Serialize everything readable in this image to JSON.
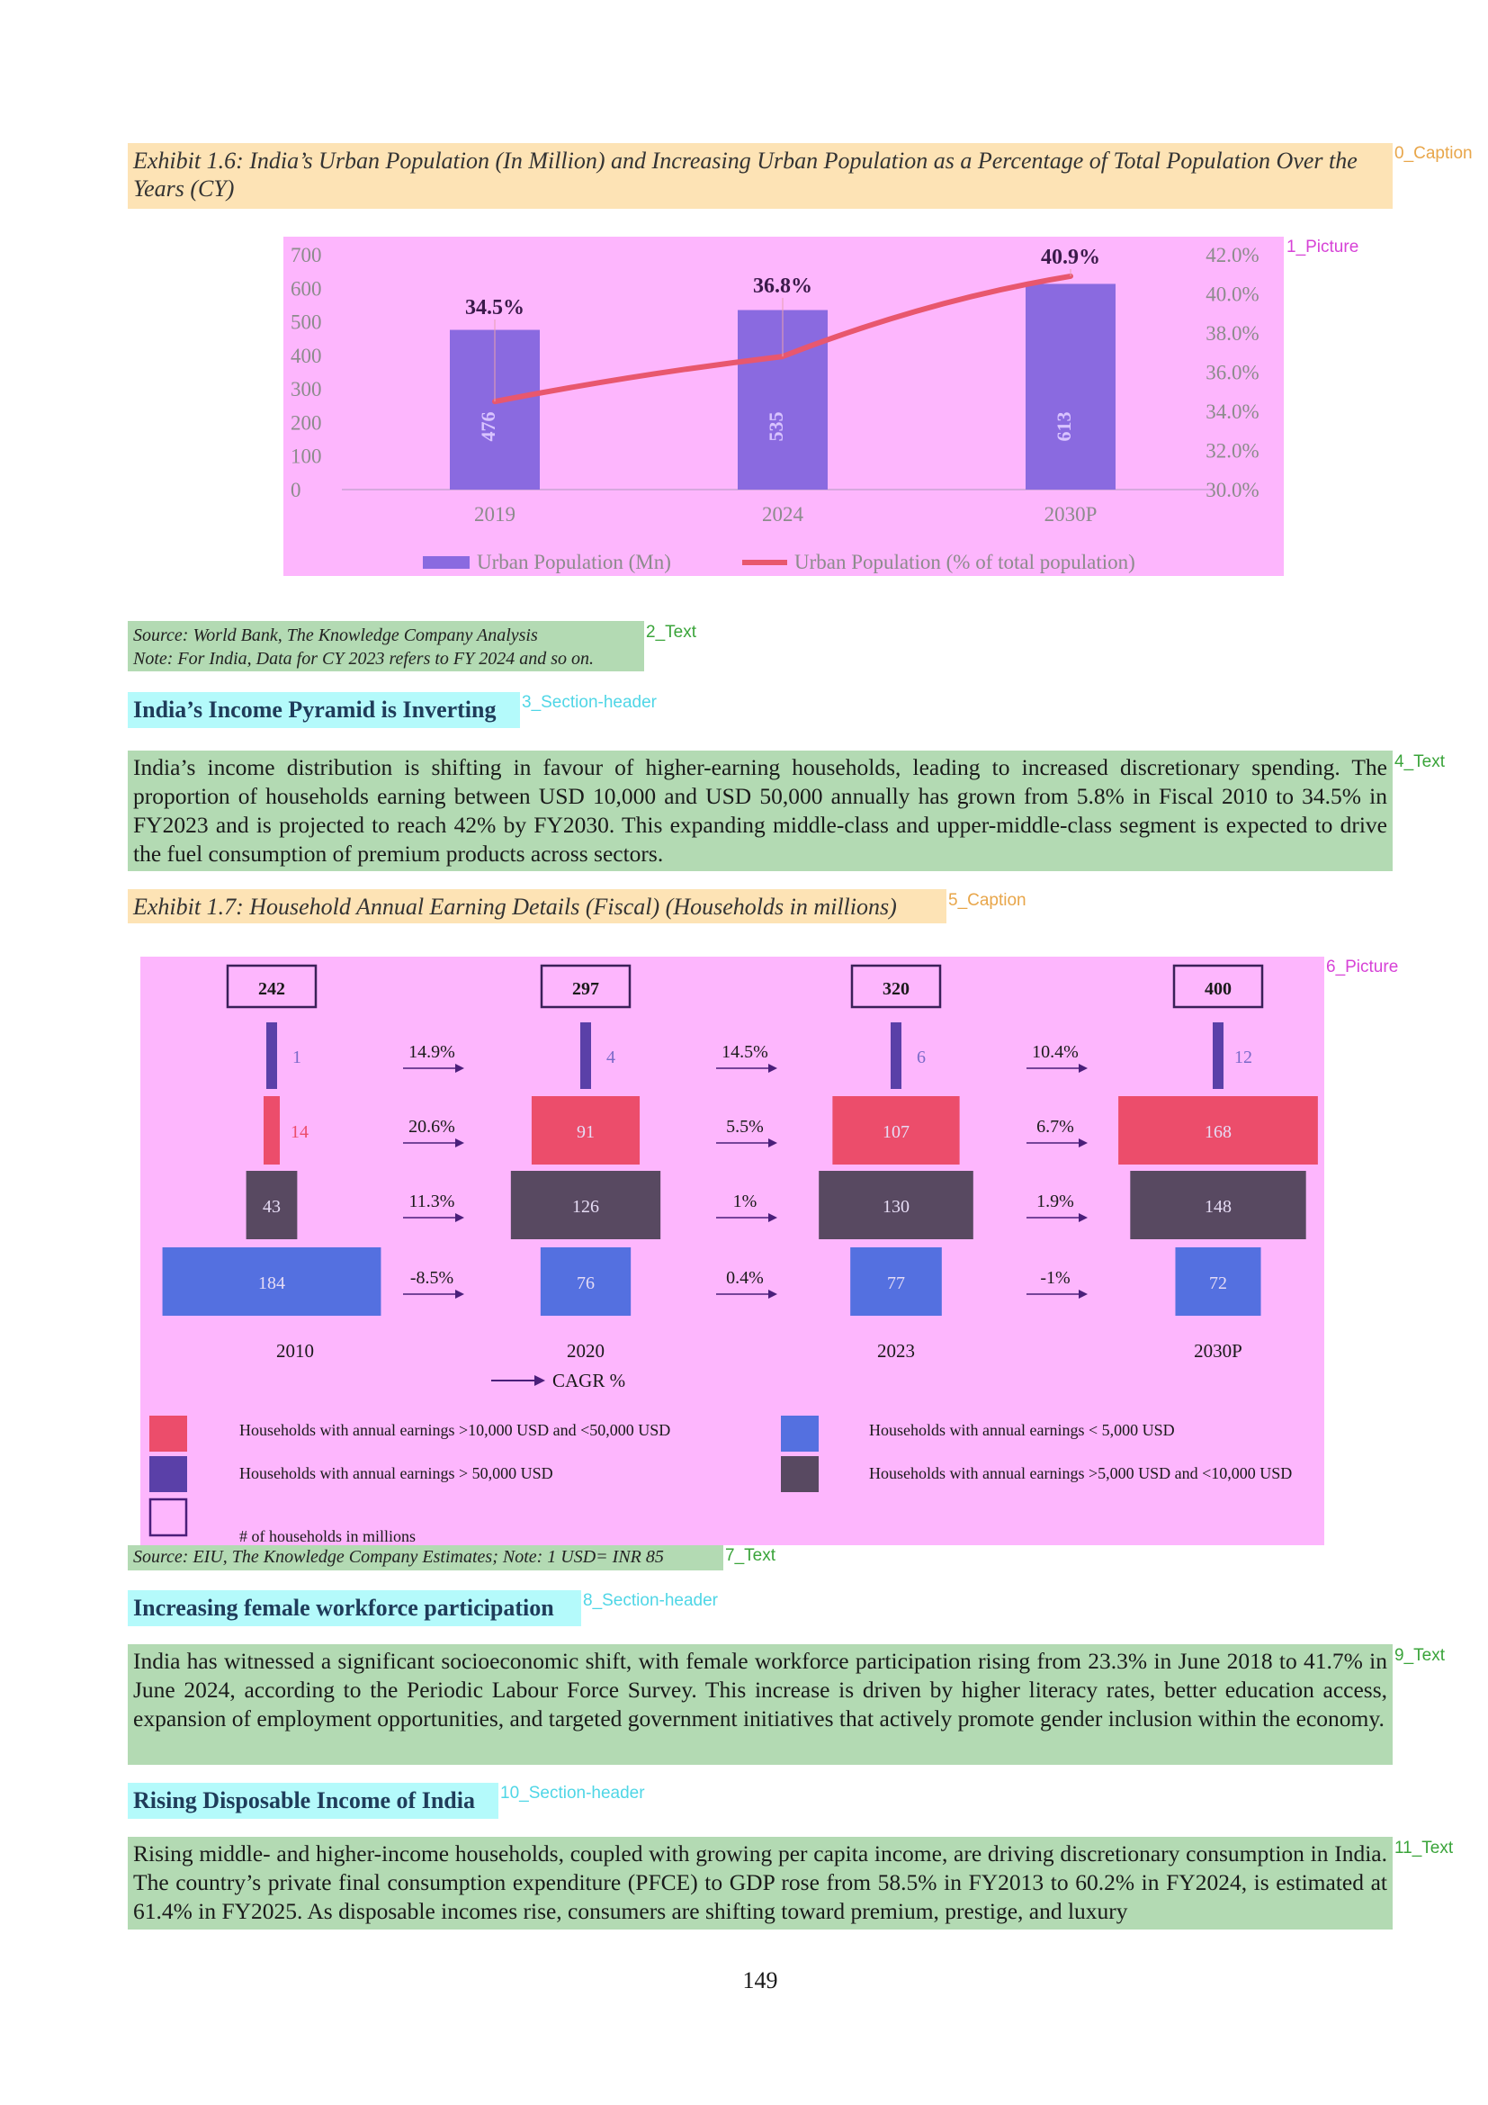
{
  "labels": {
    "caption1": "0_Caption",
    "picture1": "1_Picture",
    "text2": "2_Text",
    "header3": "3_Section-header",
    "text4": "4_Text",
    "caption5": "5_Caption",
    "picture6": "6_Picture",
    "text7": "7_Text",
    "header8": "8_Section-header",
    "text9": "9_Text",
    "header10": "10_Section-header",
    "text11": "11_Text"
  },
  "caption1": "Exhibit 1.6: India’s Urban Population (In Million) and Increasing Urban Population as a Percentage of Total Population Over the Years (CY)",
  "source1_line1": "Source: World Bank, The Knowledge Company Analysis",
  "source1_line2": "Note: For India, Data for CY 2023 refers to FY 2024 and so on.",
  "header3": "India’s Income Pyramid is Inverting",
  "text4": "India’s income distribution is shifting in favour of higher-earning households, leading to increased discretionary spending. The proportion of households earning between USD 10,000 and USD 50,000 annually has grown from 5.8% in Fiscal 2010 to 34.5% in FY2023 and is projected to reach 42% by FY2030. This expanding middle-class and upper-middle-class segment is expected to drive the fuel consumption of premium products across sectors.",
  "caption5": "Exhibit 1.7: Household Annual Earning Details (Fiscal) (Households in millions)",
  "source7": "Source: EIU, The Knowledge Company Estimates; Note: 1 USD= INR 85",
  "header8": "Increasing female workforce participation",
  "text9": "India has witnessed a significant socioeconomic shift, with female workforce participation rising from 23.3% in June 2018 to 41.7% in June 2024, according to the Periodic Labour Force Survey. This increase is driven by higher literacy rates, better education access, expansion of employment opportunities, and targeted government initiatives that actively promote gender inclusion within the economy.",
  "header10": "Rising Disposable Income of India",
  "text11": "Rising middle- and higher-income households, coupled with growing per capita income, are driving discretionary consumption in India. The country’s private final consumption expenditure (PFCE) to GDP rose from 58.5% in FY2013 to 60.2% in FY2024, is estimated at 61.4% in FY2025. As disposable incomes rise, consumers are shifting toward premium, prestige, and luxury",
  "page_number": "149",
  "chart_data": [
    {
      "type": "bar",
      "categories": [
        "2019",
        "2024",
        "2030P"
      ],
      "series": [
        {
          "name": "Urban Population (Mn)",
          "type": "bar",
          "axis": "left",
          "values": [
            476,
            535,
            613
          ],
          "color": "#8a6ae0"
        },
        {
          "name": "Urban Population (% of total population)",
          "type": "line",
          "axis": "right",
          "values": [
            34.5,
            36.8,
            40.9
          ],
          "labels": [
            "34.5%",
            "36.8%",
            "40.9%"
          ],
          "color": "#e8576e"
        }
      ],
      "ylim": [
        0,
        700
      ],
      "yticks": [
        "700",
        "600",
        "500",
        "400",
        "300",
        "200",
        "100",
        "0"
      ],
      "y2lim": [
        30,
        42
      ],
      "y2ticks": [
        "42.0%",
        "40.0%",
        "38.0%",
        "36.0%",
        "34.0%",
        "32.0%",
        "30.0%"
      ],
      "legend": "bottom",
      "grid": false
    },
    {
      "type": "bar",
      "subtype": "stacked-pyramid",
      "categories": [
        "2010",
        "2020",
        "2023",
        "2030P"
      ],
      "totals": [
        "242",
        "297",
        "320",
        "400"
      ],
      "series": [
        {
          "name": "Households with annual earnings > 50,000 USD",
          "color": "#5a40a8",
          "values": [
            1,
            4,
            6,
            12
          ]
        },
        {
          "name": "Households with annual earnings >10,000 USD and <50,000 USD",
          "color": "#ec4d6b",
          "values": [
            14,
            91,
            107,
            168
          ]
        },
        {
          "name": "Households with annual earnings >5,000 USD and <10,000 USD",
          "color": "#584961",
          "values": [
            43,
            126,
            130,
            148
          ]
        },
        {
          "name": "Households with annual earnings < 5,000 USD",
          "color": "#5470e0",
          "values": [
            184,
            76,
            77,
            72
          ]
        }
      ],
      "cagr": [
        [
          "14.9%",
          "20.6%",
          "11.3%",
          "-8.5%"
        ],
        [
          "14.5%",
          "5.5%",
          "1%",
          "0.4%"
        ],
        [
          "10.4%",
          "6.7%",
          "1.9%",
          "-1%"
        ]
      ],
      "cagr_label": "CAGR %",
      "outline_legend": "# of households in millions"
    }
  ]
}
